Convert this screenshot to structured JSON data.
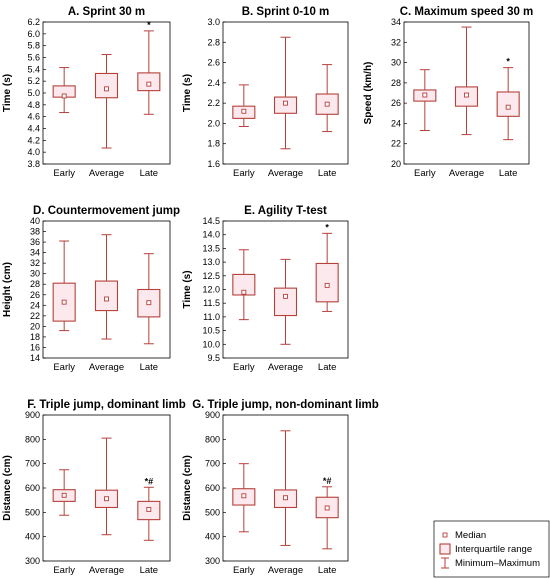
{
  "accent_color": "#b5413a",
  "fill_color": "#fce9ee",
  "chart_data": [
    {
      "type": "box",
      "title": "A. Sprint 30 m",
      "ylabel": "Time (s)",
      "ylim": [
        3.8,
        6.2
      ],
      "yticks": [
        3.8,
        4.0,
        4.2,
        4.4,
        4.6,
        4.8,
        5.0,
        5.2,
        5.4,
        5.6,
        5.8,
        6.0,
        6.2
      ],
      "tick_decimals": 1,
      "categories": [
        "Early",
        "Average",
        "Late"
      ],
      "boxes": [
        {
          "min": 4.67,
          "q1": 4.93,
          "median": 4.95,
          "q3": 5.12,
          "max": 5.43,
          "annot": ""
        },
        {
          "min": 4.07,
          "q1": 4.92,
          "median": 5.07,
          "q3": 5.33,
          "max": 5.65,
          "annot": ""
        },
        {
          "min": 4.64,
          "q1": 5.04,
          "median": 5.15,
          "q3": 5.34,
          "max": 6.05,
          "annot": "*"
        }
      ]
    },
    {
      "type": "box",
      "title": "B. Sprint 0-10 m",
      "ylabel": "Time (s)",
      "ylim": [
        1.6,
        3.0
      ],
      "yticks": [
        1.6,
        1.8,
        2.0,
        2.2,
        2.4,
        2.6,
        2.8,
        3.0
      ],
      "tick_decimals": 1,
      "categories": [
        "Early",
        "Average",
        "Late"
      ],
      "boxes": [
        {
          "min": 1.97,
          "q1": 2.05,
          "median": 2.12,
          "q3": 2.17,
          "max": 2.38,
          "annot": ""
        },
        {
          "min": 1.75,
          "q1": 2.1,
          "median": 2.2,
          "q3": 2.26,
          "max": 2.85,
          "annot": ""
        },
        {
          "min": 1.92,
          "q1": 2.09,
          "median": 2.19,
          "q3": 2.29,
          "max": 2.58,
          "annot": ""
        }
      ]
    },
    {
      "type": "box",
      "title": "C. Maximum speed 30 m",
      "ylabel": "Speed (km/h)",
      "ylim": [
        20,
        34
      ],
      "yticks": [
        20,
        22,
        24,
        26,
        28,
        30,
        32,
        34
      ],
      "tick_decimals": 0,
      "categories": [
        "Early",
        "Average",
        "Late"
      ],
      "boxes": [
        {
          "min": 23.3,
          "q1": 26.2,
          "median": 26.8,
          "q3": 27.3,
          "max": 29.3,
          "annot": ""
        },
        {
          "min": 22.9,
          "q1": 25.7,
          "median": 26.8,
          "q3": 27.6,
          "max": 33.5,
          "annot": ""
        },
        {
          "min": 22.4,
          "q1": 24.7,
          "median": 25.6,
          "q3": 27.1,
          "max": 29.5,
          "annot": "*"
        }
      ]
    },
    {
      "type": "box",
      "title": "D. Countermovement jump",
      "ylabel": "Height (cm)",
      "ylim": [
        14,
        40
      ],
      "yticks": [
        14,
        16,
        18,
        20,
        22,
        24,
        26,
        28,
        30,
        32,
        34,
        36,
        38,
        40
      ],
      "tick_decimals": 0,
      "categories": [
        "Early",
        "Average",
        "Late"
      ],
      "boxes": [
        {
          "min": 19.2,
          "q1": 21.0,
          "median": 24.6,
          "q3": 28.2,
          "max": 36.2,
          "annot": ""
        },
        {
          "min": 17.6,
          "q1": 23.0,
          "median": 25.2,
          "q3": 28.6,
          "max": 37.4,
          "annot": ""
        },
        {
          "min": 16.7,
          "q1": 21.8,
          "median": 24.5,
          "q3": 27.0,
          "max": 33.8,
          "annot": ""
        }
      ]
    },
    {
      "type": "box",
      "title": "E. Agility T-test",
      "ylabel": "Time (s)",
      "ylim": [
        9.5,
        14.5
      ],
      "yticks": [
        9.5,
        10.0,
        10.5,
        11.0,
        11.5,
        12.0,
        12.5,
        13.0,
        13.5,
        14.0,
        14.5
      ],
      "tick_decimals": 1,
      "categories": [
        "Early",
        "Average",
        "Late"
      ],
      "boxes": [
        {
          "min": 10.9,
          "q1": 11.8,
          "median": 11.9,
          "q3": 12.55,
          "max": 13.45,
          "annot": ""
        },
        {
          "min": 10.0,
          "q1": 11.05,
          "median": 11.75,
          "q3": 12.05,
          "max": 13.1,
          "annot": ""
        },
        {
          "min": 11.2,
          "q1": 11.55,
          "median": 12.15,
          "q3": 12.95,
          "max": 14.05,
          "annot": "*"
        }
      ]
    },
    {
      "type": "box",
      "title": "F. Triple jump, dominant limb",
      "ylabel": "Distance (cm)",
      "ylim": [
        300,
        900
      ],
      "yticks": [
        300,
        400,
        500,
        600,
        700,
        800,
        900
      ],
      "tick_decimals": 0,
      "categories": [
        "Early",
        "Average",
        "Late"
      ],
      "boxes": [
        {
          "min": 488,
          "q1": 545,
          "median": 570,
          "q3": 593,
          "max": 675,
          "annot": ""
        },
        {
          "min": 408,
          "q1": 520,
          "median": 556,
          "q3": 591,
          "max": 805,
          "annot": ""
        },
        {
          "min": 385,
          "q1": 470,
          "median": 512,
          "q3": 545,
          "max": 603,
          "annot": "*#"
        }
      ]
    },
    {
      "type": "box",
      "title": "G. Triple jump, non-dominant limb",
      "ylabel": "Distance (cm)",
      "ylim": [
        300,
        900
      ],
      "yticks": [
        300,
        400,
        500,
        600,
        700,
        800,
        900
      ],
      "tick_decimals": 0,
      "categories": [
        "Early",
        "Average",
        "Late"
      ],
      "boxes": [
        {
          "min": 420,
          "q1": 530,
          "median": 568,
          "q3": 597,
          "max": 700,
          "annot": ""
        },
        {
          "min": 364,
          "q1": 520,
          "median": 560,
          "q3": 592,
          "max": 835,
          "annot": ""
        },
        {
          "min": 350,
          "q1": 478,
          "median": 518,
          "q3": 562,
          "max": 605,
          "annot": "*#"
        }
      ]
    }
  ],
  "legend": {
    "items": [
      {
        "key": "median",
        "label": "Median"
      },
      {
        "key": "iqr",
        "label": "Interquartile range"
      },
      {
        "key": "minmax",
        "label": "Minimum–Maximum"
      }
    ]
  }
}
